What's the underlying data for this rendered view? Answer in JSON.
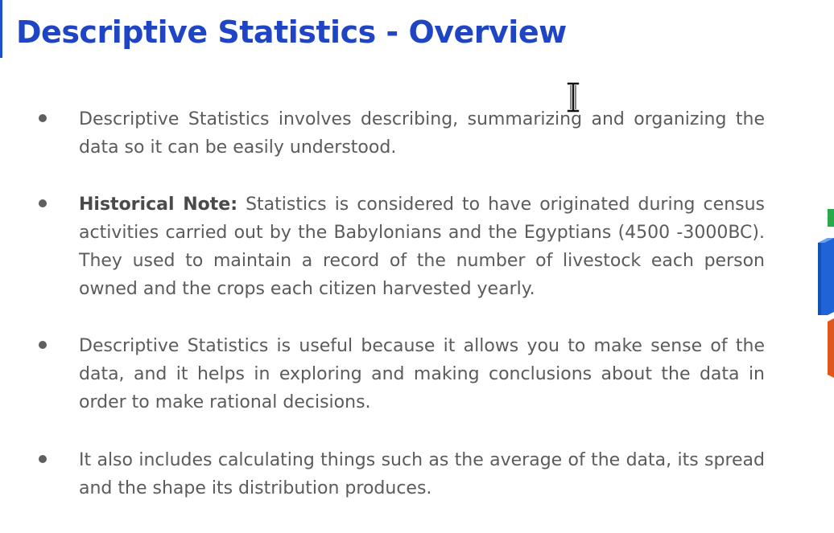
{
  "slide": {
    "title": "Descriptive Statistics - Overview",
    "bullets": [
      {
        "bold_prefix": "",
        "text": "Descriptive Statistics involves describing, summarizing and organizing the data so it can be easily understood."
      },
      {
        "bold_prefix": "Historical Note:",
        "text": " Statistics is considered to have originated during census activities carried out by the Babylonians and the Egyptians (4500 -3000BC). They used to maintain a record of the number of livestock each person owned and the crops each citizen harvested yearly."
      },
      {
        "bold_prefix": "",
        "text": "Descriptive Statistics is useful because it allows you to make sense of the data, and it helps in exploring and making conclusions about the data in order to make rational decisions."
      },
      {
        "bold_prefix": "",
        "text": "It also includes calculating things such as the average of the data, its spread and the shape its distribution produces."
      }
    ]
  },
  "colors": {
    "title": "#1f45c4",
    "body_text": "#5b5b5b",
    "bullet_dot": "#5f5f5f",
    "deco_blue": "#1f63d6",
    "deco_orange": "#e0561b",
    "deco_green": "#2aa84a"
  },
  "icons": {
    "cursor": "text-cursor-ibeam-icon",
    "decoration": "bar-chart-decoration-icon"
  }
}
